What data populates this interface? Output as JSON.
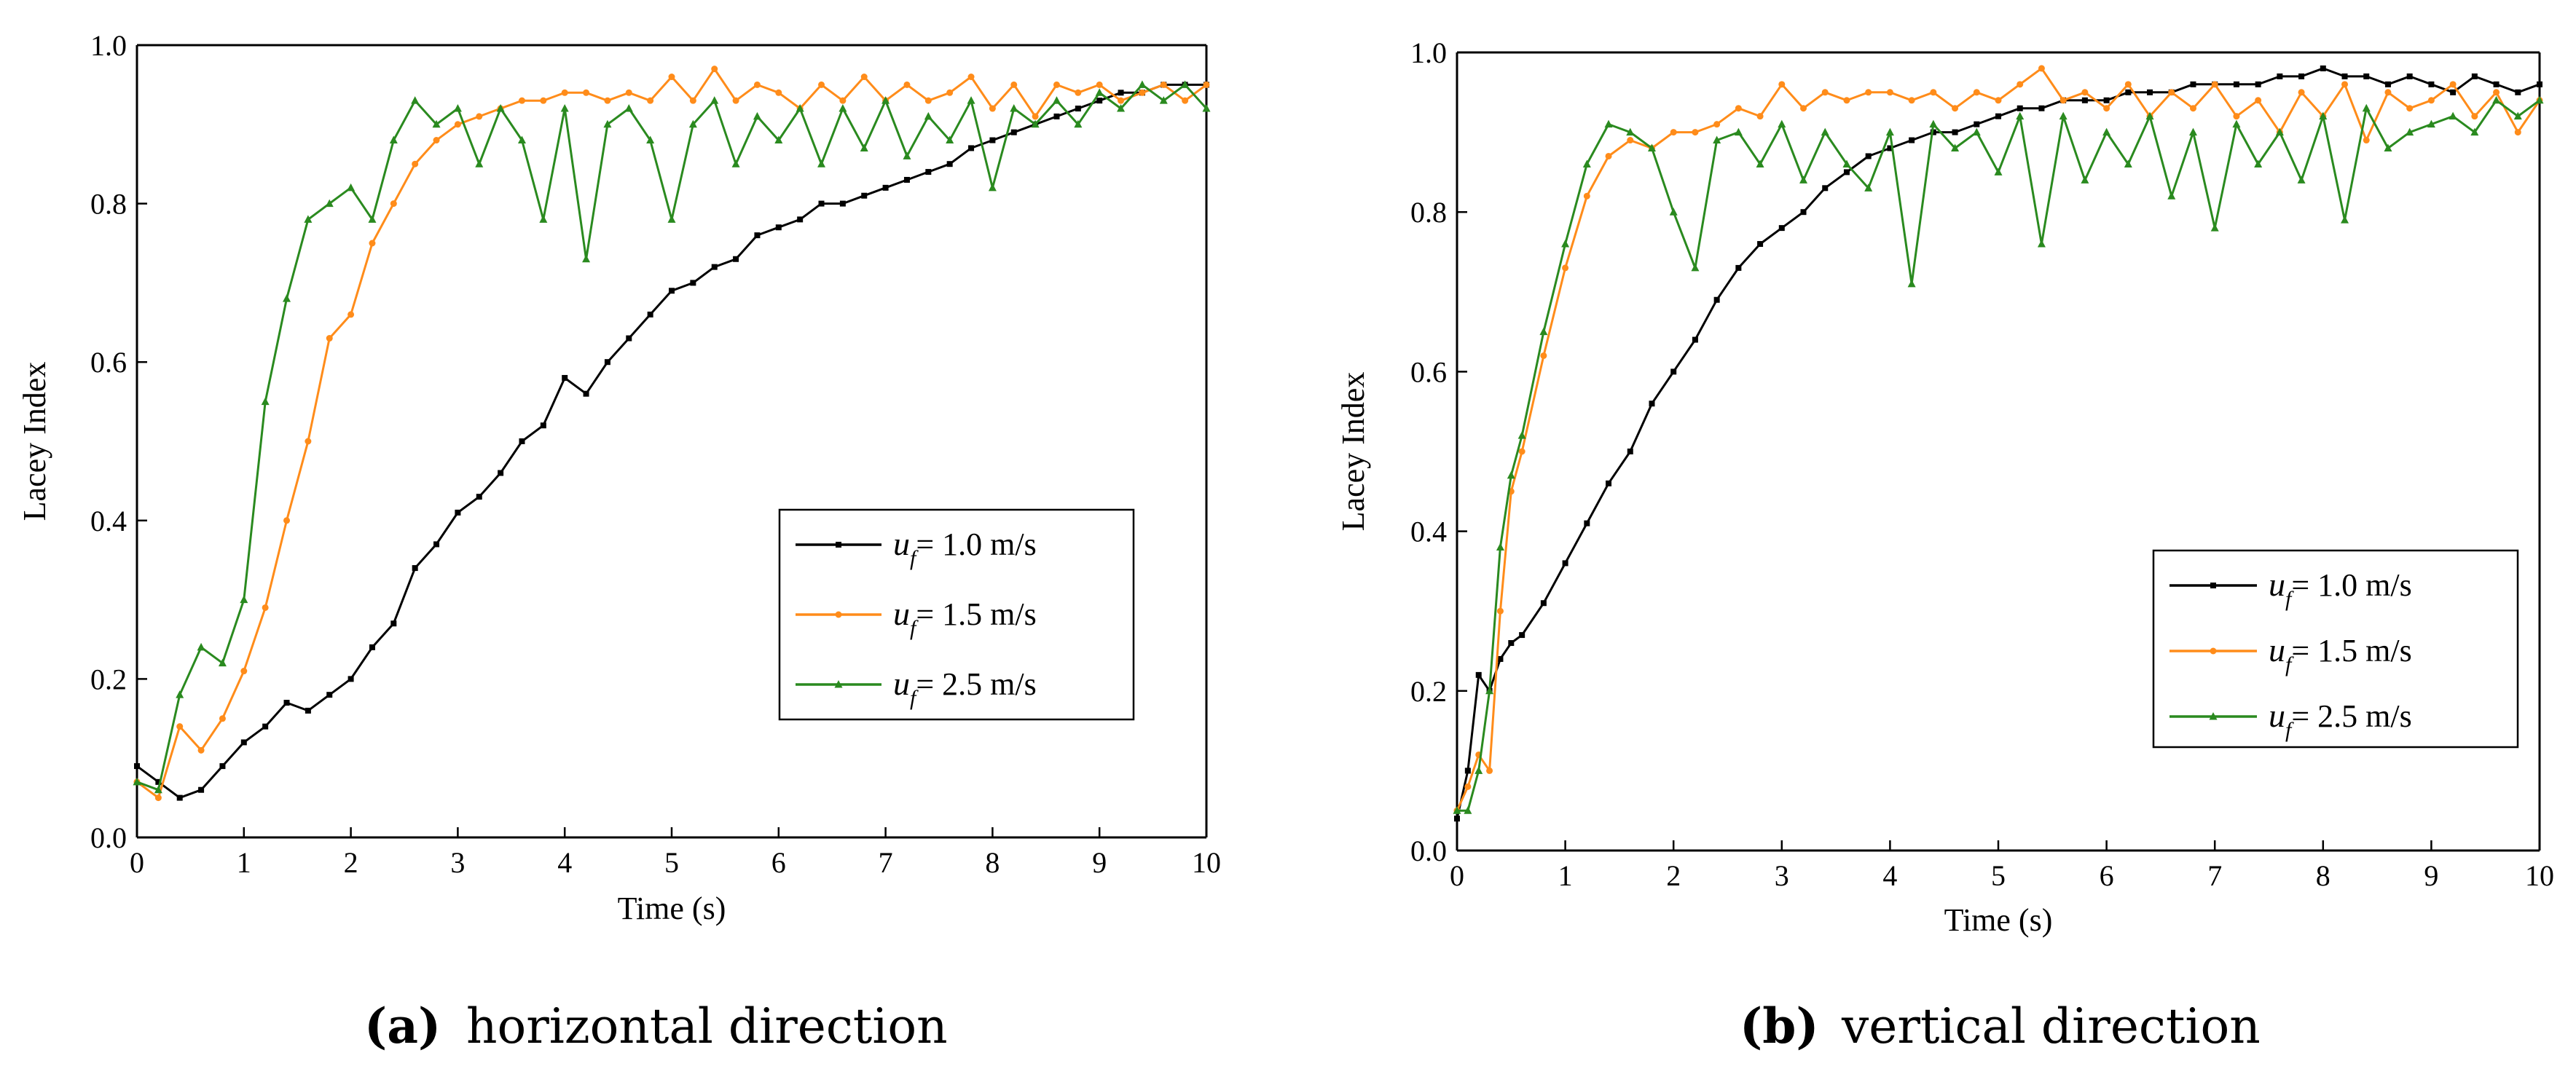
{
  "chart_data": [
    {
      "type": "line",
      "panel_label": "(a)",
      "caption": "horizontal direction",
      "xlabel": "Time (s)",
      "ylabel": "Lacey Index",
      "xlim": [
        0,
        10
      ],
      "ylim": [
        0,
        1.0
      ],
      "xticks": [
        0,
        1,
        2,
        3,
        4,
        5,
        6,
        7,
        8,
        9,
        10
      ],
      "yticks": [
        0.0,
        0.2,
        0.4,
        0.6,
        0.8,
        1.0
      ],
      "ytick_labels": [
        "0.0",
        "0.2",
        "0.4",
        "0.6",
        "0.8",
        "1.0"
      ],
      "legend_position": "center-right",
      "series": [
        {
          "name": "u_f = 1.0 m/s",
          "symbol": "u",
          "subscript": "f",
          "label_rest": "= 1.0 m/s",
          "color": "#000000",
          "marker": "square",
          "x": [
            0,
            0.2,
            0.4,
            0.6,
            0.8,
            1.0,
            1.2,
            1.4,
            1.6,
            1.8,
            2.0,
            2.2,
            2.4,
            2.6,
            2.8,
            3.0,
            3.2,
            3.4,
            3.6,
            3.8,
            4.0,
            4.2,
            4.4,
            4.6,
            4.8,
            5.0,
            5.2,
            5.4,
            5.6,
            5.8,
            6.0,
            6.2,
            6.4,
            6.6,
            6.8,
            7.0,
            7.2,
            7.4,
            7.6,
            7.8,
            8.0,
            8.2,
            8.4,
            8.6,
            8.8,
            9.0,
            9.2,
            9.4,
            9.6,
            9.8,
            10.0
          ],
          "y": [
            0.09,
            0.07,
            0.05,
            0.06,
            0.09,
            0.12,
            0.14,
            0.17,
            0.16,
            0.18,
            0.2,
            0.24,
            0.27,
            0.34,
            0.37,
            0.41,
            0.43,
            0.46,
            0.5,
            0.52,
            0.58,
            0.56,
            0.6,
            0.63,
            0.66,
            0.69,
            0.7,
            0.72,
            0.73,
            0.76,
            0.77,
            0.78,
            0.8,
            0.8,
            0.81,
            0.82,
            0.83,
            0.84,
            0.85,
            0.87,
            0.88,
            0.89,
            0.9,
            0.91,
            0.92,
            0.93,
            0.94,
            0.94,
            0.95,
            0.95,
            0.95
          ]
        },
        {
          "name": "u_f = 1.5 m/s",
          "symbol": "u",
          "subscript": "f",
          "label_rest": "= 1.5 m/s",
          "color": "#ff8c1a",
          "marker": "circle",
          "x": [
            0,
            0.2,
            0.4,
            0.6,
            0.8,
            1.0,
            1.2,
            1.4,
            1.6,
            1.8,
            2.0,
            2.2,
            2.4,
            2.6,
            2.8,
            3.0,
            3.2,
            3.4,
            3.6,
            3.8,
            4.0,
            4.2,
            4.4,
            4.6,
            4.8,
            5.0,
            5.2,
            5.4,
            5.6,
            5.8,
            6.0,
            6.2,
            6.4,
            6.6,
            6.8,
            7.0,
            7.2,
            7.4,
            7.6,
            7.8,
            8.0,
            8.2,
            8.4,
            8.6,
            8.8,
            9.0,
            9.2,
            9.4,
            9.6,
            9.8,
            10.0
          ],
          "y": [
            0.07,
            0.05,
            0.14,
            0.11,
            0.15,
            0.21,
            0.29,
            0.4,
            0.5,
            0.63,
            0.66,
            0.75,
            0.8,
            0.85,
            0.88,
            0.9,
            0.91,
            0.92,
            0.93,
            0.93,
            0.94,
            0.94,
            0.93,
            0.94,
            0.93,
            0.96,
            0.93,
            0.97,
            0.93,
            0.95,
            0.94,
            0.92,
            0.95,
            0.93,
            0.96,
            0.93,
            0.95,
            0.93,
            0.94,
            0.96,
            0.92,
            0.95,
            0.91,
            0.95,
            0.94,
            0.95,
            0.93,
            0.94,
            0.95,
            0.93,
            0.95
          ]
        },
        {
          "name": "u_f = 2.5 m/s",
          "symbol": "u",
          "subscript": "f",
          "label_rest": "= 2.5 m/s",
          "color": "#2a8a1f",
          "marker": "triangle",
          "x": [
            0,
            0.2,
            0.4,
            0.6,
            0.8,
            1.0,
            1.2,
            1.4,
            1.6,
            1.8,
            2.0,
            2.2,
            2.4,
            2.6,
            2.8,
            3.0,
            3.2,
            3.4,
            3.6,
            3.8,
            4.0,
            4.2,
            4.4,
            4.6,
            4.8,
            5.0,
            5.2,
            5.4,
            5.6,
            5.8,
            6.0,
            6.2,
            6.4,
            6.6,
            6.8,
            7.0,
            7.2,
            7.4,
            7.6,
            7.8,
            8.0,
            8.2,
            8.4,
            8.6,
            8.8,
            9.0,
            9.2,
            9.4,
            9.6,
            9.8,
            10.0
          ],
          "y": [
            0.07,
            0.06,
            0.18,
            0.24,
            0.22,
            0.3,
            0.55,
            0.68,
            0.78,
            0.8,
            0.82,
            0.78,
            0.88,
            0.93,
            0.9,
            0.92,
            0.85,
            0.92,
            0.88,
            0.78,
            0.92,
            0.73,
            0.9,
            0.92,
            0.88,
            0.78,
            0.9,
            0.93,
            0.85,
            0.91,
            0.88,
            0.92,
            0.85,
            0.92,
            0.87,
            0.93,
            0.86,
            0.91,
            0.88,
            0.93,
            0.82,
            0.92,
            0.9,
            0.93,
            0.9,
            0.94,
            0.92,
            0.95,
            0.93,
            0.95,
            0.92
          ]
        }
      ]
    },
    {
      "type": "line",
      "panel_label": "(b)",
      "caption": "vertical direction",
      "xlabel": "Time (s)",
      "ylabel": "Lacey Index",
      "xlim": [
        0,
        10
      ],
      "ylim": [
        0,
        1.0
      ],
      "xticks": [
        0,
        1,
        2,
        3,
        4,
        5,
        6,
        7,
        8,
        9,
        10
      ],
      "yticks": [
        0.0,
        0.2,
        0.4,
        0.6,
        0.8,
        1.0
      ],
      "ytick_labels": [
        "0.0",
        "0.2",
        "0.4",
        "0.6",
        "0.8",
        "1.0"
      ],
      "legend_position": "center-right",
      "series": [
        {
          "name": "u_f = 1.0 m/s",
          "symbol": "u",
          "subscript": "f",
          "label_rest": "= 1.0 m/s",
          "color": "#000000",
          "marker": "square",
          "x": [
            0,
            0.1,
            0.2,
            0.3,
            0.4,
            0.5,
            0.6,
            0.8,
            1.0,
            1.2,
            1.4,
            1.6,
            1.8,
            2.0,
            2.2,
            2.4,
            2.6,
            2.8,
            3.0,
            3.2,
            3.4,
            3.6,
            3.8,
            4.0,
            4.2,
            4.4,
            4.6,
            4.8,
            5.0,
            5.2,
            5.4,
            5.6,
            5.8,
            6.0,
            6.2,
            6.4,
            6.6,
            6.8,
            7.0,
            7.2,
            7.4,
            7.6,
            7.8,
            8.0,
            8.2,
            8.4,
            8.6,
            8.8,
            9.0,
            9.2,
            9.4,
            9.6,
            9.8,
            10.0
          ],
          "y": [
            0.04,
            0.1,
            0.22,
            0.2,
            0.24,
            0.26,
            0.27,
            0.31,
            0.36,
            0.41,
            0.46,
            0.5,
            0.56,
            0.6,
            0.64,
            0.69,
            0.73,
            0.76,
            0.78,
            0.8,
            0.83,
            0.85,
            0.87,
            0.88,
            0.89,
            0.9,
            0.9,
            0.91,
            0.92,
            0.93,
            0.93,
            0.94,
            0.94,
            0.94,
            0.95,
            0.95,
            0.95,
            0.96,
            0.96,
            0.96,
            0.96,
            0.97,
            0.97,
            0.98,
            0.97,
            0.97,
            0.96,
            0.97,
            0.96,
            0.95,
            0.97,
            0.96,
            0.95,
            0.96
          ]
        },
        {
          "name": "u_f = 1.5 m/s",
          "symbol": "u",
          "subscript": "f",
          "label_rest": "= 1.5 m/s",
          "color": "#ff8c1a",
          "marker": "circle",
          "x": [
            0,
            0.1,
            0.2,
            0.3,
            0.4,
            0.5,
            0.6,
            0.8,
            1.0,
            1.2,
            1.4,
            1.6,
            1.8,
            2.0,
            2.2,
            2.4,
            2.6,
            2.8,
            3.0,
            3.2,
            3.4,
            3.6,
            3.8,
            4.0,
            4.2,
            4.4,
            4.6,
            4.8,
            5.0,
            5.2,
            5.4,
            5.6,
            5.8,
            6.0,
            6.2,
            6.4,
            6.6,
            6.8,
            7.0,
            7.2,
            7.4,
            7.6,
            7.8,
            8.0,
            8.2,
            8.4,
            8.6,
            8.8,
            9.0,
            9.2,
            9.4,
            9.6,
            9.8,
            10.0
          ],
          "y": [
            0.05,
            0.08,
            0.12,
            0.1,
            0.3,
            0.45,
            0.5,
            0.62,
            0.73,
            0.82,
            0.87,
            0.89,
            0.88,
            0.9,
            0.9,
            0.91,
            0.93,
            0.92,
            0.96,
            0.93,
            0.95,
            0.94,
            0.95,
            0.95,
            0.94,
            0.95,
            0.93,
            0.95,
            0.94,
            0.96,
            0.98,
            0.94,
            0.95,
            0.93,
            0.96,
            0.92,
            0.95,
            0.93,
            0.96,
            0.92,
            0.94,
            0.9,
            0.95,
            0.92,
            0.96,
            0.89,
            0.95,
            0.93,
            0.94,
            0.96,
            0.92,
            0.95,
            0.9,
            0.94
          ]
        },
        {
          "name": "u_f = 2.5 m/s",
          "symbol": "u",
          "subscript": "f",
          "label_rest": "= 2.5 m/s",
          "color": "#2a8a1f",
          "marker": "triangle",
          "x": [
            0,
            0.1,
            0.2,
            0.3,
            0.4,
            0.5,
            0.6,
            0.8,
            1.0,
            1.2,
            1.4,
            1.6,
            1.8,
            2.0,
            2.2,
            2.4,
            2.6,
            2.8,
            3.0,
            3.2,
            3.4,
            3.6,
            3.8,
            4.0,
            4.2,
            4.4,
            4.6,
            4.8,
            5.0,
            5.2,
            5.4,
            5.6,
            5.8,
            6.0,
            6.2,
            6.4,
            6.6,
            6.8,
            7.0,
            7.2,
            7.4,
            7.6,
            7.8,
            8.0,
            8.2,
            8.4,
            8.6,
            8.8,
            9.0,
            9.2,
            9.4,
            9.6,
            9.8,
            10.0
          ],
          "y": [
            0.05,
            0.05,
            0.1,
            0.2,
            0.38,
            0.47,
            0.52,
            0.65,
            0.76,
            0.86,
            0.91,
            0.9,
            0.88,
            0.8,
            0.73,
            0.89,
            0.9,
            0.86,
            0.91,
            0.84,
            0.9,
            0.86,
            0.83,
            0.9,
            0.71,
            0.91,
            0.88,
            0.9,
            0.85,
            0.92,
            0.76,
            0.92,
            0.84,
            0.9,
            0.86,
            0.92,
            0.82,
            0.9,
            0.78,
            0.91,
            0.86,
            0.9,
            0.84,
            0.92,
            0.79,
            0.93,
            0.88,
            0.9,
            0.91,
            0.92,
            0.9,
            0.94,
            0.92,
            0.94
          ]
        }
      ]
    }
  ]
}
